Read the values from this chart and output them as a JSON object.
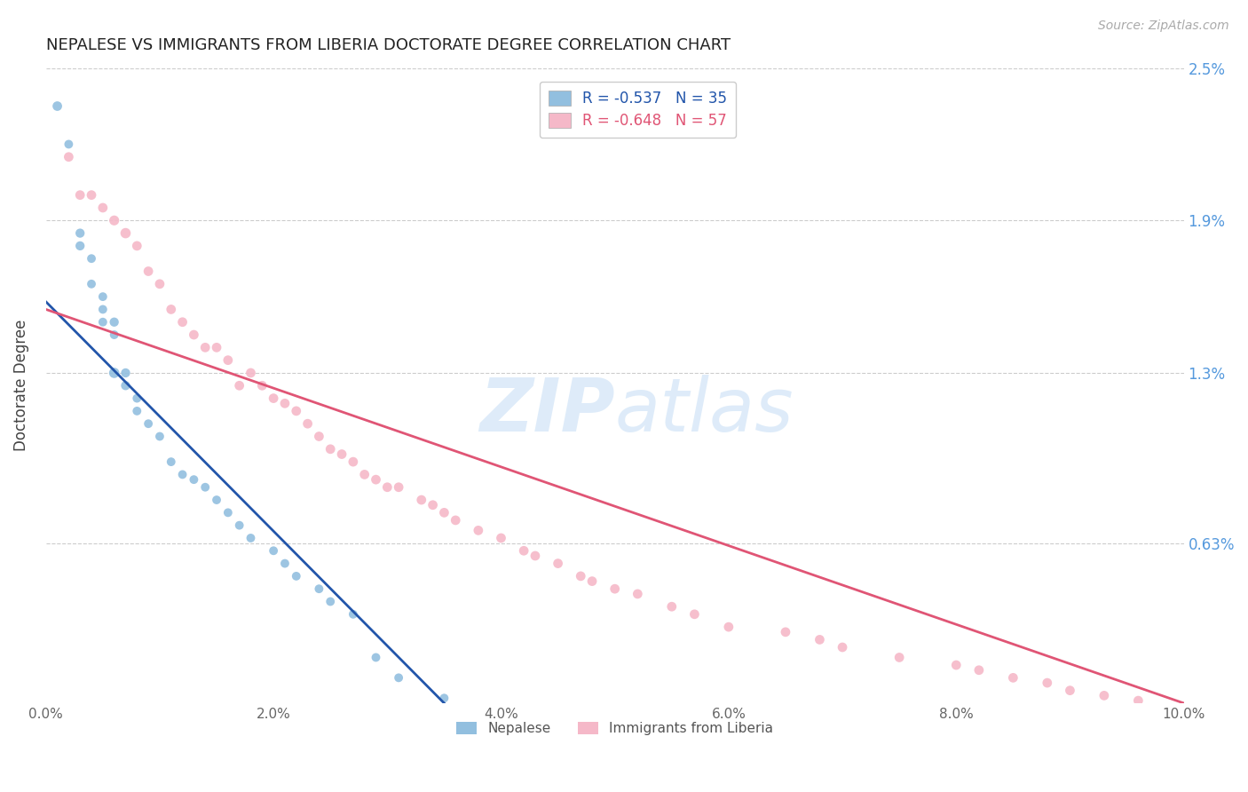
{
  "title": "NEPALESE VS IMMIGRANTS FROM LIBERIA DOCTORATE DEGREE CORRELATION CHART",
  "source": "Source: ZipAtlas.com",
  "ylabel": "Doctorate Degree",
  "xmin": 0.0,
  "xmax": 0.1,
  "ymin": 0.0,
  "ymax": 0.025,
  "yticks": [
    0.0063,
    0.013,
    0.019,
    0.025
  ],
  "ytick_labels": [
    "0.63%",
    "1.3%",
    "1.9%",
    "2.5%"
  ],
  "xticks": [
    0.0,
    0.02,
    0.04,
    0.06,
    0.08,
    0.1
  ],
  "xtick_labels": [
    "0.0%",
    "2.0%",
    "4.0%",
    "6.0%",
    "8.0%",
    "10.0%"
  ],
  "nepalese_R": -0.537,
  "nepalese_N": 35,
  "liberia_R": -0.648,
  "liberia_N": 57,
  "nepalese_color": "#92bfdf",
  "liberia_color": "#f5b8c8",
  "nepalese_line_color": "#2255aa",
  "liberia_line_color": "#e05575",
  "legend_label1": "Nepalese",
  "legend_label2": "Immigrants from Liberia",
  "watermark_zip": "ZIP",
  "watermark_atlas": "atlas",
  "background_color": "#ffffff",
  "grid_color": "#cccccc",
  "title_color": "#222222",
  "axis_label_color": "#444444",
  "ytick_label_color": "#5599dd",
  "nepalese_x": [
    0.001,
    0.002,
    0.003,
    0.003,
    0.004,
    0.004,
    0.005,
    0.005,
    0.005,
    0.006,
    0.006,
    0.006,
    0.007,
    0.007,
    0.008,
    0.008,
    0.009,
    0.01,
    0.011,
    0.012,
    0.013,
    0.014,
    0.015,
    0.016,
    0.017,
    0.018,
    0.02,
    0.021,
    0.022,
    0.024,
    0.025,
    0.027,
    0.029,
    0.031,
    0.035
  ],
  "nepalese_y": [
    0.0235,
    0.022,
    0.0185,
    0.018,
    0.0175,
    0.0165,
    0.016,
    0.0155,
    0.015,
    0.015,
    0.0145,
    0.013,
    0.013,
    0.0125,
    0.012,
    0.0115,
    0.011,
    0.0105,
    0.0095,
    0.009,
    0.0088,
    0.0085,
    0.008,
    0.0075,
    0.007,
    0.0065,
    0.006,
    0.0055,
    0.005,
    0.0045,
    0.004,
    0.0035,
    0.0018,
    0.001,
    0.0002
  ],
  "nepalese_sizes": [
    60,
    50,
    55,
    55,
    50,
    50,
    50,
    50,
    50,
    55,
    50,
    70,
    55,
    55,
    50,
    50,
    50,
    50,
    50,
    50,
    50,
    50,
    50,
    50,
    50,
    50,
    50,
    50,
    50,
    50,
    50,
    50,
    50,
    50,
    50
  ],
  "liberia_x": [
    0.002,
    0.003,
    0.004,
    0.005,
    0.006,
    0.007,
    0.008,
    0.009,
    0.01,
    0.011,
    0.012,
    0.013,
    0.014,
    0.015,
    0.016,
    0.017,
    0.018,
    0.019,
    0.02,
    0.021,
    0.022,
    0.023,
    0.024,
    0.025,
    0.026,
    0.027,
    0.028,
    0.029,
    0.03,
    0.031,
    0.033,
    0.034,
    0.035,
    0.036,
    0.038,
    0.04,
    0.042,
    0.043,
    0.045,
    0.047,
    0.048,
    0.05,
    0.052,
    0.055,
    0.057,
    0.06,
    0.065,
    0.068,
    0.07,
    0.075,
    0.08,
    0.082,
    0.085,
    0.088,
    0.09,
    0.093,
    0.096
  ],
  "liberia_y": [
    0.0215,
    0.02,
    0.02,
    0.0195,
    0.019,
    0.0185,
    0.018,
    0.017,
    0.0165,
    0.0155,
    0.015,
    0.0145,
    0.014,
    0.014,
    0.0135,
    0.0125,
    0.013,
    0.0125,
    0.012,
    0.0118,
    0.0115,
    0.011,
    0.0105,
    0.01,
    0.0098,
    0.0095,
    0.009,
    0.0088,
    0.0085,
    0.0085,
    0.008,
    0.0078,
    0.0075,
    0.0072,
    0.0068,
    0.0065,
    0.006,
    0.0058,
    0.0055,
    0.005,
    0.0048,
    0.0045,
    0.0043,
    0.0038,
    0.0035,
    0.003,
    0.0028,
    0.0025,
    0.0022,
    0.0018,
    0.0015,
    0.0013,
    0.001,
    0.0008,
    0.0005,
    0.0003,
    0.0001
  ],
  "liberia_sizes": [
    60,
    60,
    60,
    60,
    65,
    70,
    60,
    60,
    60,
    60,
    60,
    60,
    60,
    60,
    60,
    60,
    60,
    60,
    60,
    60,
    60,
    60,
    60,
    60,
    60,
    60,
    60,
    60,
    60,
    60,
    60,
    60,
    60,
    60,
    60,
    60,
    60,
    60,
    60,
    60,
    60,
    60,
    60,
    60,
    60,
    60,
    60,
    60,
    60,
    60,
    60,
    60,
    60,
    60,
    60,
    60,
    60
  ],
  "nepalese_line_x": [
    0.0,
    0.035
  ],
  "nepalese_line_y": [
    0.0158,
    0.0
  ],
  "liberia_line_x": [
    0.0,
    0.1
  ],
  "liberia_line_y": [
    0.0155,
    0.0
  ]
}
